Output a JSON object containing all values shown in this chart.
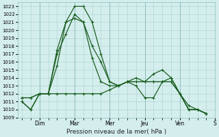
{
  "ylabel": "Pression niveau de la mer( hPa )",
  "ylim": [
    1009,
    1023.5
  ],
  "yticks": [
    1009,
    1010,
    1011,
    1012,
    1013,
    1014,
    1015,
    1016,
    1017,
    1018,
    1019,
    1020,
    1021,
    1022,
    1023
  ],
  "day_labels": [
    "Dim",
    "Mar",
    "Mer",
    "Jeu",
    "Ven",
    "S"
  ],
  "day_positions": [
    2,
    6,
    10,
    14,
    18,
    22
  ],
  "bg_color": "#d4eeed",
  "grid_color": "#aacfcc",
  "line_color": "#1a5e20",
  "lines": [
    [
      1011,
      1010,
      1012,
      1012,
      1017.5,
      1021,
      1023,
      1023,
      1021,
      1017,
      1013.5,
      1013,
      1013.5,
      1014,
      1013.5,
      1014.5,
      1015,
      1014,
      1012,
      1010,
      1010,
      1009.5
    ],
    [
      1011,
      1010,
      1012,
      1012,
      1017,
      1019.5,
      1022,
      1021,
      1018,
      1016,
      1013.5,
      1013,
      1013.5,
      1013,
      1011.5,
      1011.5,
      1013.5,
      1014,
      1012,
      1010,
      1010,
      1009.5
    ],
    [
      1011.5,
      1011.5,
      1012,
      1012,
      1015.5,
      1021,
      1021.5,
      1021,
      1016.5,
      1013.5,
      1013,
      1013,
      1013.5,
      1013.5,
      1013.5,
      1013.5,
      1013.5,
      1013.5,
      1012,
      1010,
      1010,
      1009.5
    ],
    [
      1011.5,
      1011.5,
      1012,
      1012,
      1012,
      1012,
      1012,
      1012,
      1012,
      1012,
      1012.5,
      1013,
      1013.5,
      1013.5,
      1013.5,
      1013.5,
      1013.5,
      1013.5,
      1012,
      1010.5,
      1010,
      1009.5
    ]
  ],
  "n_points": 22,
  "figsize": [
    3.2,
    2.0
  ],
  "dpi": 100,
  "ytick_fontsize": 5,
  "xtick_fontsize": 5.5,
  "xlabel_fontsize": 6.5,
  "linewidth": 0.9,
  "markersize": 2.5
}
